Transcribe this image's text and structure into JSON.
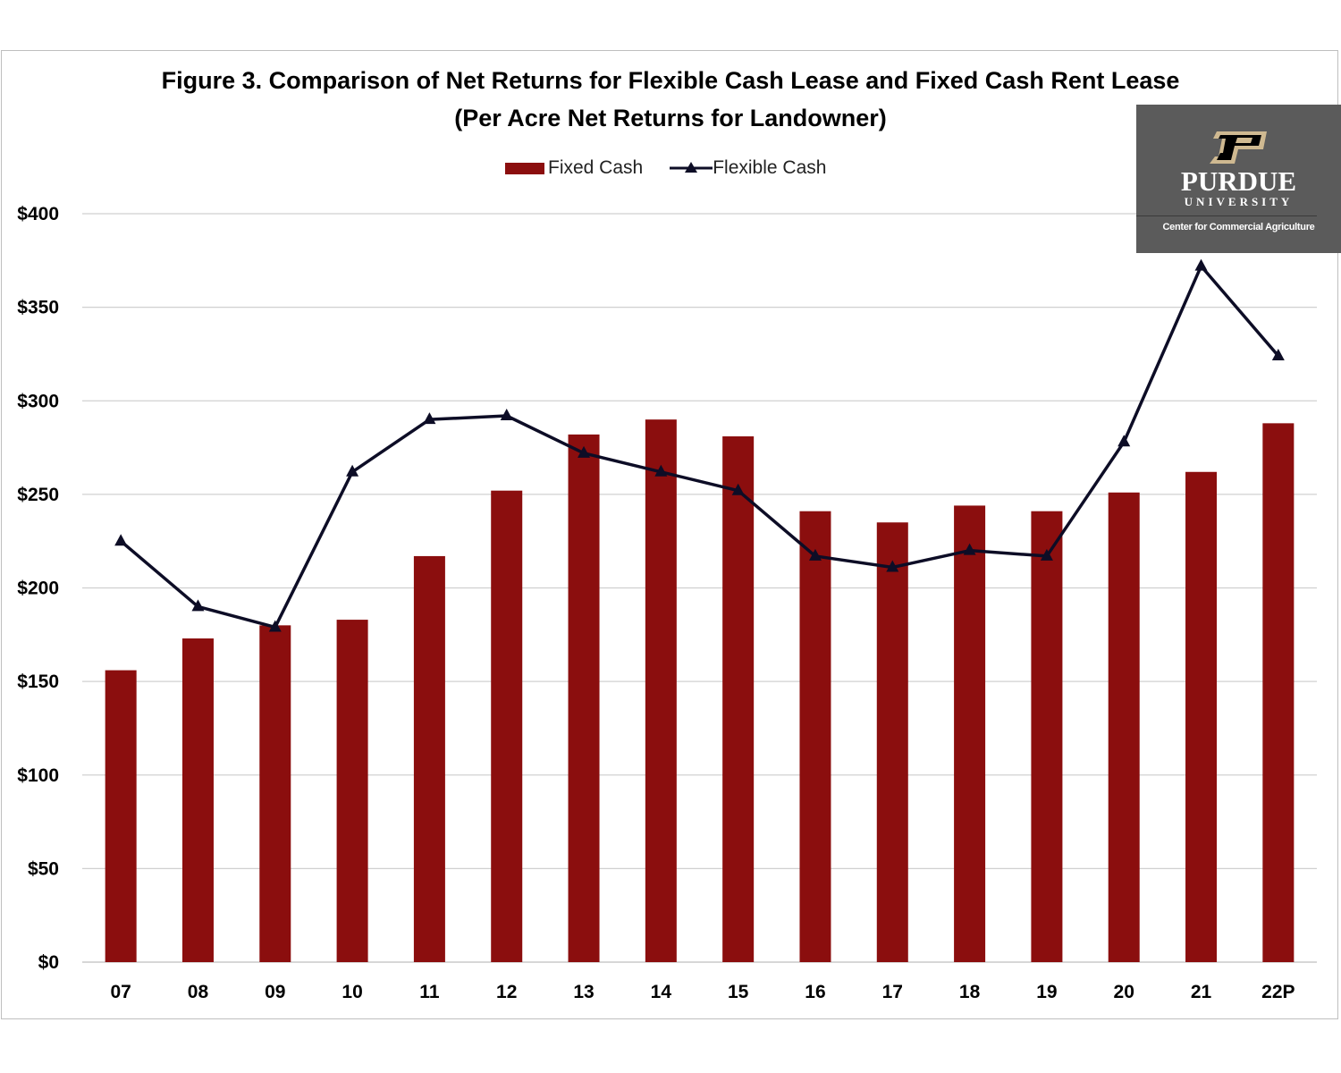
{
  "chart_data": {
    "type": "bar",
    "title": "Figure 3.  Comparison of Net Returns for Flexible Cash Lease and Fixed Cash Rent Lease",
    "subtitle": "(Per Acre Net Returns for Landowner)",
    "xlabel": "",
    "ylabel": "",
    "categories": [
      "07",
      "08",
      "09",
      "10",
      "11",
      "12",
      "13",
      "14",
      "15",
      "16",
      "17",
      "18",
      "19",
      "20",
      "21",
      "22P"
    ],
    "series": [
      {
        "name": "Fixed Cash",
        "type": "bar",
        "color": "#8b0e0e",
        "values": [
          156,
          173,
          180,
          183,
          217,
          252,
          282,
          290,
          281,
          241,
          235,
          244,
          241,
          251,
          262,
          288
        ]
      },
      {
        "name": "Flexible Cash",
        "type": "line",
        "marker": "triangle",
        "color": "#0d0d26",
        "values": [
          225,
          190,
          179,
          262,
          290,
          292,
          272,
          262,
          252,
          217,
          211,
          220,
          217,
          278,
          372,
          324
        ]
      }
    ],
    "ylim": [
      0,
      400
    ],
    "yticks": [
      "$0",
      "$50",
      "$100",
      "$150",
      "$200",
      "$250",
      "$300",
      "$350",
      "$400"
    ],
    "grid": true,
    "legend": "top-center"
  },
  "logo": {
    "name": "PURDUE",
    "sub": "UNIVERSITY",
    "center": "Center for Commercial Agriculture"
  }
}
